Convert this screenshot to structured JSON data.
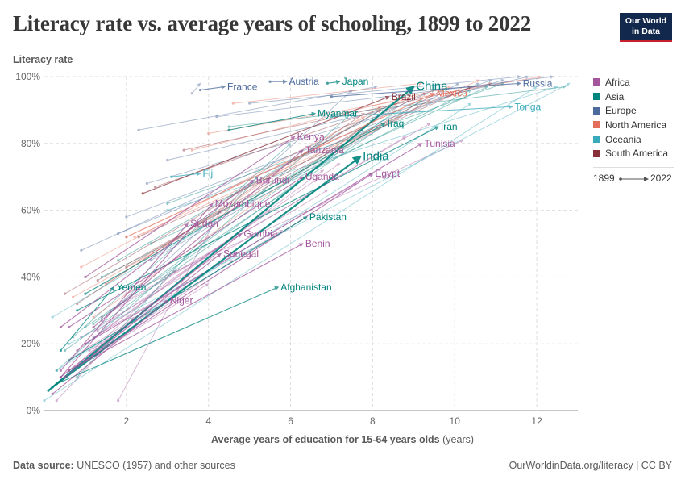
{
  "header": {
    "title": "Literacy rate vs. average years of schooling, 1899 to 2022",
    "logo_line1": "Our World",
    "logo_line2": "in Data"
  },
  "axes": {
    "y_title": "Literacy rate",
    "x_title_bold": "Average years of education for 15-64 years olds",
    "x_title_unit": "(years)"
  },
  "legend": {
    "items": [
      {
        "label": "Africa",
        "color": "#a2559c"
      },
      {
        "label": "Asia",
        "color": "#00847e"
      },
      {
        "label": "Europe",
        "color": "#4c6a9c"
      },
      {
        "label": "North America",
        "color": "#e56e5a"
      },
      {
        "label": "Oceania",
        "color": "#38aaba"
      },
      {
        "label": "South America",
        "color": "#883039"
      }
    ],
    "time_start": "1899",
    "time_end": "2022"
  },
  "footer": {
    "source_label": "Data source:",
    "source_text": "UNESCO (1957) and other sources",
    "url": "OurWorldinData.org/literacy | CC BY"
  },
  "chart_data": {
    "type": "scatter",
    "subtype": "connected-arrows",
    "title": "Literacy rate vs. average years of schooling, 1899 to 2022",
    "xlabel": "Average years of education for 15-64 years olds (years)",
    "ylabel": "Literacy rate",
    "xlim": [
      0,
      13
    ],
    "ylim": [
      0,
      100
    ],
    "x_ticks": [
      2,
      4,
      6,
      8,
      10,
      12
    ],
    "y_ticks": [
      0,
      20,
      40,
      60,
      80,
      100
    ],
    "y_tick_labels": [
      "0%",
      "20%",
      "40%",
      "60%",
      "80%",
      "100%"
    ],
    "grid": true,
    "legend_position": "right",
    "regions": {
      "Africa": "#a2559c",
      "Asia": "#00847e",
      "Europe": "#4c6a9c",
      "North America": "#e56e5a",
      "Oceania": "#38aaba",
      "South America": "#883039"
    },
    "labeled_series": [
      {
        "name": "France",
        "region": "Europe",
        "start": [
          3.8,
          96
        ],
        "end": [
          4.4,
          97
        ]
      },
      {
        "name": "Austria",
        "region": "Europe",
        "start": [
          5.5,
          98.5
        ],
        "end": [
          5.9,
          98.5
        ]
      },
      {
        "name": "Japan",
        "region": "Asia",
        "start": [
          6.9,
          98
        ],
        "end": [
          7.2,
          98.5
        ]
      },
      {
        "name": "Brazil",
        "region": "South America",
        "start": [
          2.4,
          65
        ],
        "end": [
          8.4,
          94
        ]
      },
      {
        "name": "China",
        "region": "Asia",
        "start": [
          0.1,
          6
        ],
        "end": [
          9.0,
          97
        ]
      },
      {
        "name": "Mexico",
        "region": "North America",
        "start": [
          2.0,
          52
        ],
        "end": [
          9.5,
          95
        ]
      },
      {
        "name": "Russia",
        "region": "Europe",
        "start": [
          7.0,
          94
        ],
        "end": [
          11.6,
          98
        ]
      },
      {
        "name": "Myanmar",
        "region": "Asia",
        "start": [
          4.5,
          84
        ],
        "end": [
          6.6,
          89
        ]
      },
      {
        "name": "Iraq",
        "region": "Asia",
        "start": [
          1.0,
          35
        ],
        "end": [
          8.3,
          86
        ]
      },
      {
        "name": "Tonga",
        "region": "Oceania",
        "start": [
          7.0,
          88
        ],
        "end": [
          11.4,
          91
        ]
      },
      {
        "name": "Kenya",
        "region": "Africa",
        "start": [
          1.0,
          40
        ],
        "end": [
          6.1,
          82
        ]
      },
      {
        "name": "Iran",
        "region": "Asia",
        "start": [
          0.8,
          30
        ],
        "end": [
          9.6,
          85
        ]
      },
      {
        "name": "Tunisia",
        "region": "Africa",
        "start": [
          1.0,
          20
        ],
        "end": [
          9.2,
          80
        ]
      },
      {
        "name": "Tanzania",
        "region": "Africa",
        "start": [
          1.2,
          25
        ],
        "end": [
          6.3,
          78
        ]
      },
      {
        "name": "India",
        "region": "Asia",
        "start": [
          0.2,
          7
        ],
        "end": [
          7.7,
          76
        ]
      },
      {
        "name": "Fiji",
        "region": "Oceania",
        "start": [
          3.1,
          70
        ],
        "end": [
          3.8,
          71
        ]
      },
      {
        "name": "Egypt",
        "region": "Africa",
        "start": [
          1.0,
          15
        ],
        "end": [
          8.0,
          71
        ]
      },
      {
        "name": "Burundi",
        "region": "Africa",
        "start": [
          0.4,
          25
        ],
        "end": [
          5.1,
          69
        ]
      },
      {
        "name": "Uganda",
        "region": "Africa",
        "start": [
          0.6,
          25
        ],
        "end": [
          6.3,
          70
        ]
      },
      {
        "name": "Mozambique",
        "region": "Africa",
        "start": [
          0.4,
          10
        ],
        "end": [
          4.1,
          62
        ]
      },
      {
        "name": "Pakistan",
        "region": "Asia",
        "start": [
          0.6,
          15
        ],
        "end": [
          6.4,
          58
        ]
      },
      {
        "name": "Sudan",
        "region": "Africa",
        "start": [
          0.4,
          12
        ],
        "end": [
          3.5,
          56
        ]
      },
      {
        "name": "Gambia",
        "region": "Africa",
        "start": [
          0.4,
          10
        ],
        "end": [
          4.8,
          53
        ]
      },
      {
        "name": "Benin",
        "region": "Africa",
        "start": [
          0.6,
          12
        ],
        "end": [
          6.3,
          50
        ]
      },
      {
        "name": "Senegal",
        "region": "Africa",
        "start": [
          0.5,
          10
        ],
        "end": [
          4.3,
          47
        ]
      },
      {
        "name": "Afghanistan",
        "region": "Asia",
        "start": [
          0.3,
          8
        ],
        "end": [
          5.7,
          37
        ]
      },
      {
        "name": "Yemen",
        "region": "Asia",
        "start": [
          0.4,
          18
        ],
        "end": [
          1.7,
          37
        ]
      },
      {
        "name": "Niger",
        "region": "Africa",
        "start": [
          0.2,
          5
        ],
        "end": [
          3.0,
          33
        ]
      }
    ],
    "background_series": [
      {
        "region": "Africa",
        "start": [
          0.5,
          10
        ],
        "end": [
          3.2,
          42
        ]
      },
      {
        "region": "Africa",
        "start": [
          0.6,
          12
        ],
        "end": [
          4.6,
          45
        ]
      },
      {
        "region": "Africa",
        "start": [
          0.8,
          18
        ],
        "end": [
          5.5,
          60
        ]
      },
      {
        "region": "Africa",
        "start": [
          0.9,
          14
        ],
        "end": [
          4.0,
          38
        ]
      },
      {
        "region": "Africa",
        "start": [
          1.0,
          20
        ],
        "end": [
          6.8,
          72
        ]
      },
      {
        "region": "Africa",
        "start": [
          1.2,
          22
        ],
        "end": [
          7.6,
          68
        ]
      },
      {
        "region": "Africa",
        "start": [
          1.4,
          28
        ],
        "end": [
          8.8,
          82
        ]
      },
      {
        "region": "Africa",
        "start": [
          0.7,
          16
        ],
        "end": [
          3.8,
          40
        ]
      },
      {
        "region": "Africa",
        "start": [
          1.6,
          30
        ],
        "end": [
          9.4,
          86
        ]
      },
      {
        "region": "Africa",
        "start": [
          0.3,
          3
        ],
        "end": [
          2.2,
          28
        ]
      },
      {
        "region": "Africa",
        "start": [
          1.8,
          3
        ],
        "end": [
          4.3,
          60
        ]
      },
      {
        "region": "Africa",
        "start": [
          2.0,
          35
        ],
        "end": [
          10.2,
          81
        ]
      },
      {
        "region": "Africa",
        "start": [
          1.1,
          18
        ],
        "end": [
          5.8,
          54
        ]
      },
      {
        "region": "Africa",
        "start": [
          0.9,
          22
        ],
        "end": [
          6.9,
          66
        ]
      },
      {
        "region": "Africa",
        "start": [
          1.3,
          24
        ],
        "end": [
          7.2,
          74
        ]
      },
      {
        "region": "Asia",
        "start": [
          0.5,
          18
        ],
        "end": [
          8.6,
          90
        ]
      },
      {
        "region": "Asia",
        "start": [
          1.0,
          25
        ],
        "end": [
          9.2,
          93
        ]
      },
      {
        "region": "Asia",
        "start": [
          1.4,
          40
        ],
        "end": [
          10.4,
          96
        ]
      },
      {
        "region": "Asia",
        "start": [
          2.6,
          50
        ],
        "end": [
          10.8,
          97
        ]
      },
      {
        "region": "Asia",
        "start": [
          0.3,
          12
        ],
        "end": [
          7.4,
          88
        ]
      },
      {
        "region": "Asia",
        "start": [
          1.8,
          45
        ],
        "end": [
          8.9,
          95
        ]
      },
      {
        "region": "Asia",
        "start": [
          3.0,
          62
        ],
        "end": [
          11.2,
          98
        ]
      },
      {
        "region": "Asia",
        "start": [
          0.7,
          22
        ],
        "end": [
          6.0,
          80
        ]
      },
      {
        "region": "Asia",
        "start": [
          1.2,
          26
        ],
        "end": [
          8.0,
          87
        ]
      },
      {
        "region": "Asia",
        "start": [
          4.5,
          85
        ],
        "end": [
          12.7,
          97
        ]
      },
      {
        "region": "Asia",
        "start": [
          0.8,
          10
        ],
        "end": [
          5.2,
          70
        ]
      },
      {
        "region": "Europe",
        "start": [
          3.6,
          95
        ],
        "end": [
          3.8,
          98
        ]
      },
      {
        "region": "Europe",
        "start": [
          2.3,
          84
        ],
        "end": [
          8.1,
          97
        ]
      },
      {
        "region": "Europe",
        "start": [
          1.8,
          53
        ],
        "end": [
          10.6,
          98
        ]
      },
      {
        "region": "Europe",
        "start": [
          2.5,
          68
        ],
        "end": [
          11.2,
          99
        ]
      },
      {
        "region": "Europe",
        "start": [
          3.0,
          75
        ],
        "end": [
          11.8,
          100
        ]
      },
      {
        "region": "Europe",
        "start": [
          4.2,
          88
        ],
        "end": [
          12.4,
          100
        ]
      },
      {
        "region": "Europe",
        "start": [
          0.9,
          48
        ],
        "end": [
          9.5,
          96
        ]
      },
      {
        "region": "Europe",
        "start": [
          2.0,
          58
        ],
        "end": [
          10.9,
          99
        ]
      },
      {
        "region": "Europe",
        "start": [
          5.0,
          92
        ],
        "end": [
          11.6,
          100
        ]
      },
      {
        "region": "Europe",
        "start": [
          1.4,
          27
        ],
        "end": [
          7.5,
          96
        ]
      },
      {
        "region": "Europe",
        "start": [
          2.6,
          45
        ],
        "end": [
          10.1,
          98
        ]
      },
      {
        "region": "North America",
        "start": [
          0.7,
          34
        ],
        "end": [
          9.4,
          93
        ]
      },
      {
        "region": "North America",
        "start": [
          1.5,
          38
        ],
        "end": [
          8.2,
          91
        ]
      },
      {
        "region": "North America",
        "start": [
          2.2,
          52
        ],
        "end": [
          10.6,
          99
        ]
      },
      {
        "region": "North America",
        "start": [
          0.9,
          43
        ],
        "end": [
          7.8,
          88
        ]
      },
      {
        "region": "North America",
        "start": [
          3.6,
          78
        ],
        "end": [
          9.9,
          97
        ]
      },
      {
        "region": "North America",
        "start": [
          4.0,
          83
        ],
        "end": [
          12.1,
          100
        ]
      },
      {
        "region": "North America",
        "start": [
          1.2,
          28
        ],
        "end": [
          8.6,
          92
        ]
      },
      {
        "region": "North America",
        "start": [
          4.6,
          92
        ],
        "end": [
          9.2,
          98
        ]
      },
      {
        "region": "Oceania",
        "start": [
          0.2,
          28
        ],
        "end": [
          8.7,
          90
        ]
      },
      {
        "region": "Oceania",
        "start": [
          0.0,
          3
        ],
        "end": [
          12.0,
          97
        ]
      },
      {
        "region": "Oceania",
        "start": [
          0.3,
          12
        ],
        "end": [
          10.4,
          92
        ]
      },
      {
        "region": "Oceania",
        "start": [
          0.6,
          20
        ],
        "end": [
          12.8,
          98
        ]
      },
      {
        "region": "Oceania",
        "start": [
          3.0,
          60
        ],
        "end": [
          12.5,
          97
        ]
      },
      {
        "region": "South America",
        "start": [
          0.8,
          32
        ],
        "end": [
          7.8,
          89
        ]
      },
      {
        "region": "South America",
        "start": [
          1.3,
          39
        ],
        "end": [
          9.7,
          96
        ]
      },
      {
        "region": "South America",
        "start": [
          2.0,
          43
        ],
        "end": [
          8.9,
          93
        ]
      },
      {
        "region": "South America",
        "start": [
          2.3,
          52
        ],
        "end": [
          10.4,
          97
        ]
      },
      {
        "region": "South America",
        "start": [
          0.5,
          35
        ],
        "end": [
          8.2,
          90
        ]
      },
      {
        "region": "South America",
        "start": [
          2.7,
          67
        ],
        "end": [
          9.3,
          95
        ]
      },
      {
        "region": "South America",
        "start": [
          3.4,
          78
        ],
        "end": [
          10.9,
          98
        ]
      }
    ]
  }
}
